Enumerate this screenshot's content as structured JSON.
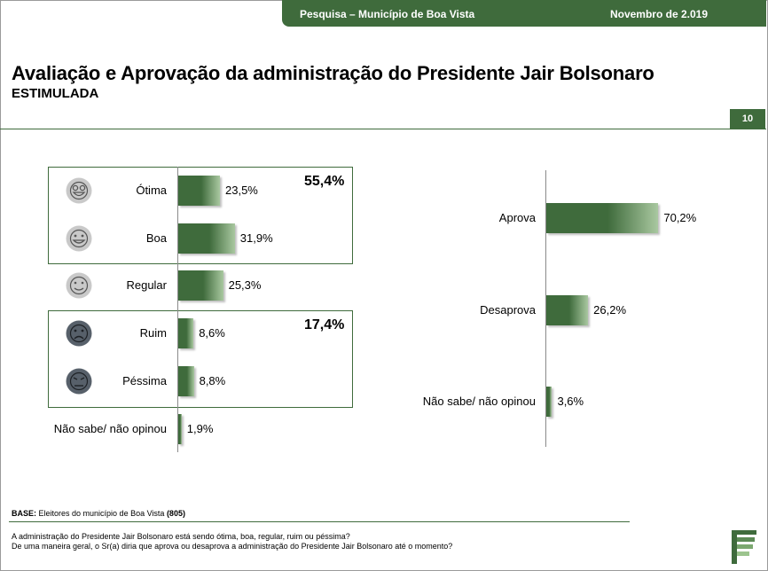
{
  "header": {
    "survey": "Pesquisa – Município de Boa Vista",
    "date": "Novembro de 2.019"
  },
  "title": "Avaliação e Aprovação da administração do Presidente Jair Bolsonaro",
  "subtitle": "ESTIMULADA",
  "page_number": "10",
  "colors": {
    "brand": "#3f6b3c",
    "bar_light": "#a9c8a0",
    "face_positive": "#c9c9c9",
    "face_negative": "#57606a"
  },
  "groups": [
    {
      "label": "55,4%",
      "members": [
        "Ótima",
        "Boa"
      ]
    },
    {
      "label": "17,4%",
      "members": [
        "Ruim",
        "Péssima"
      ]
    }
  ],
  "base": {
    "prefix": "BASE:",
    "text": " Eleitores do município de Boa Vista ",
    "count": "(805)"
  },
  "questions": [
    "A administração do Presidente Jair Bolsonaro está sendo ótima, boa, regular, ruim ou péssima?",
    "De uma maneira geral, o Sr(a) diria que aprova ou desaprova a administração do Presidente Jair Bolsonaro até o momento?"
  ],
  "chart_data": [
    {
      "type": "bar",
      "orientation": "horizontal",
      "categories": [
        "Ótima",
        "Boa",
        "Regular",
        "Ruim",
        "Péssima",
        "Não sabe/ não opinou"
      ],
      "icons": [
        "very-happy-face-icon",
        "happy-face-icon",
        "neutral-smile-face-icon",
        "sad-face-icon",
        "very-sad-face-icon",
        ""
      ],
      "values": [
        23.5,
        31.9,
        25.3,
        8.6,
        8.8,
        1.9
      ],
      "value_labels": [
        "23,5%",
        "31,9%",
        "25,3%",
        "8,6%",
        "8,8%",
        "1,9%"
      ],
      "title": "",
      "xlabel": "",
      "ylabel": "",
      "xlim": [
        0,
        100
      ],
      "grid": false
    },
    {
      "type": "bar",
      "orientation": "horizontal",
      "categories": [
        "Aprova",
        "Desaprova",
        "Não sabe/ não opinou"
      ],
      "values": [
        70.2,
        26.2,
        3.6
      ],
      "value_labels": [
        "70,2%",
        "26,2%",
        "3,6%"
      ],
      "title": "",
      "xlabel": "",
      "ylabel": "",
      "xlim": [
        0,
        100
      ],
      "grid": false
    }
  ]
}
